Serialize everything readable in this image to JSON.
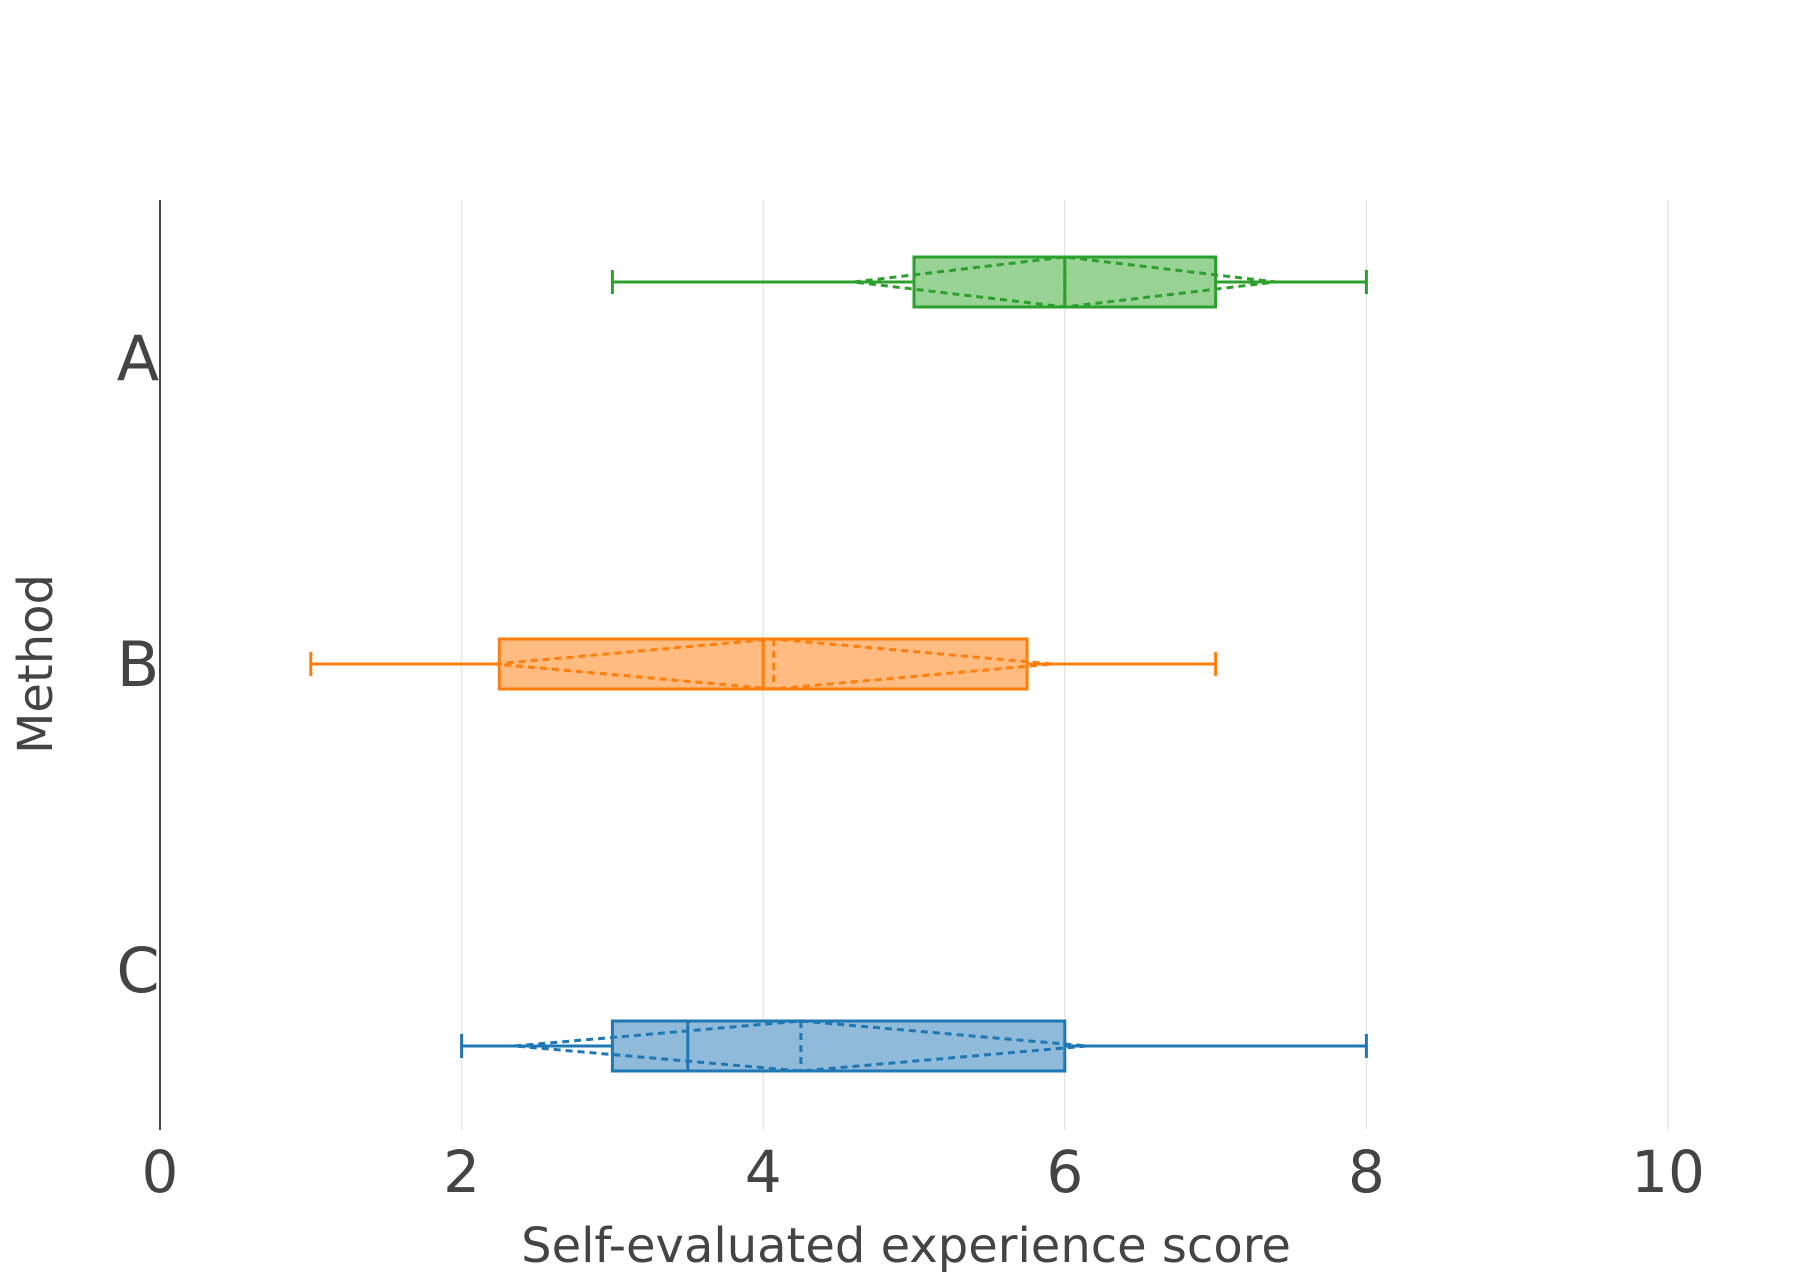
{
  "chart_data": {
    "type": "box",
    "orientation": "horizontal",
    "xlabel": "Self-evaluated experience score",
    "ylabel": "Method",
    "xlim": [
      0,
      10
    ],
    "xticks": [
      0,
      2,
      4,
      6,
      8,
      10
    ],
    "grid": true,
    "legend": "none",
    "categories": [
      "A",
      "B",
      "C"
    ],
    "series": [
      {
        "name": "A",
        "color": "#2ca02c",
        "fill": "#98d295",
        "whisker_low": 3,
        "q1": 5,
        "median": 6,
        "q3": 7,
        "whisker_high": 8,
        "mean": 6,
        "sd": 1.4
      },
      {
        "name": "B",
        "color": "#ff7f0e",
        "fill": "#ffbb80",
        "whisker_low": 1,
        "q1": 2.25,
        "median": 4,
        "q3": 5.75,
        "whisker_high": 7,
        "mean": 4.07,
        "sd": 1.85
      },
      {
        "name": "C",
        "color": "#1f77b4",
        "fill": "#8fbada",
        "whisker_low": 2,
        "q1": 3,
        "median": 3.5,
        "q3": 6,
        "whisker_high": 8,
        "mean": 4.25,
        "sd": 1.9
      }
    ]
  }
}
